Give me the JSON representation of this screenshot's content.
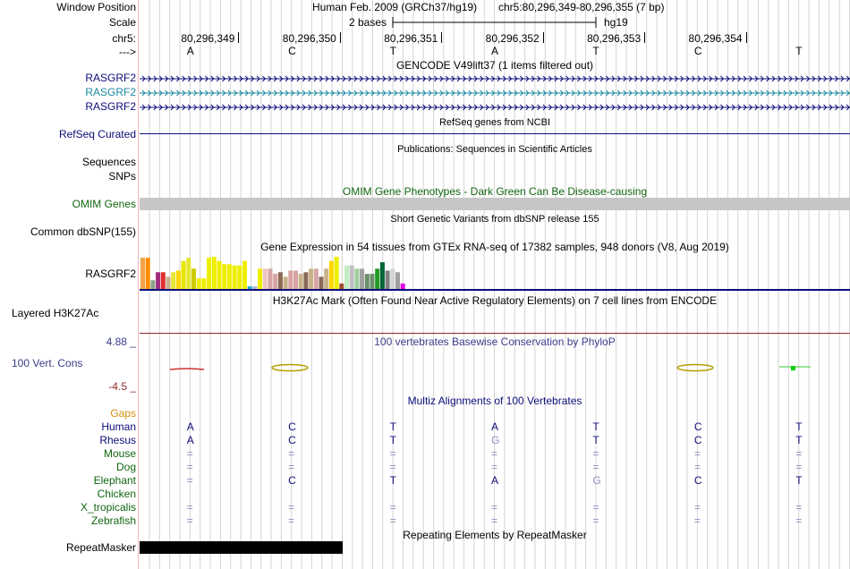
{
  "header": {
    "window_position_label": "Window Position",
    "scale_label": "Scale",
    "chrom_label": "chr5:",
    "arrow_label": "--->",
    "assembly": "Human Feb. 2009 (GRCh37/hg19)",
    "position": "chr5:80,296,349-80,296,355 (7 bp)",
    "scale_text": "2 bases",
    "db": "hg19",
    "coords": [
      "80,296,349",
      "80,296,350",
      "80,296,351",
      "80,296,352",
      "80,296,353",
      "80,296,354"
    ],
    "bases": [
      "A",
      "C",
      "T",
      "A",
      "T",
      "C",
      "T"
    ]
  },
  "gencode": {
    "title": "GENCODE V49lift37 (1 items filtered out)",
    "genes": [
      "RASGRF2",
      "RASGRF2",
      "RASGRF2"
    ],
    "colors": [
      "#0c0c78",
      "#1a8aa0",
      "#0c0c78"
    ]
  },
  "refseq": {
    "title": "RefSeq genes from NCBI",
    "label": "RefSeq Curated"
  },
  "publications": {
    "title": "Publications: Sequences in Scientific Articles",
    "label1": "Sequences",
    "label2": "SNPs"
  },
  "omim": {
    "title": "OMIM Gene Phenotypes - Dark Green Can Be Disease-causing",
    "label": "OMIM Genes"
  },
  "dbsnp": {
    "title": "Short Genetic Variants from dbSNP release 155",
    "label": "Common dbSNP(155)"
  },
  "gtex": {
    "title": "Gene Expression in 54 tissues from GTEx RNA-seq of 17382 samples, 948 donors (V8, Aug 2019)",
    "label": "RASGRF2",
    "values": [
      0.97,
      0.97,
      0.27,
      0.52,
      0.52,
      0.38,
      0.52,
      0.57,
      0.87,
      0.97,
      0.63,
      0.33,
      0.33,
      0.97,
      1.0,
      0.87,
      0.77,
      0.77,
      0.73,
      0.73,
      0.87,
      0.08,
      0.08,
      0.63,
      0.63,
      0.63,
      0.47,
      0.52,
      0.38,
      0.57,
      0.57,
      0.47,
      0.52,
      0.63,
      0.63,
      0.38,
      0.63,
      0.87,
      1.0,
      0.17,
      0.73,
      0.73,
      0.63,
      0.63,
      0.47,
      0.47,
      0.63,
      0.83,
      0.57,
      0.63,
      0.52,
      0.17,
      0.0,
      0.0
    ],
    "colors": [
      "#f2a348",
      "#ff8c00",
      "#8aa38a",
      "#a22d7f",
      "#e03030",
      "#c9b18a",
      "#e6e632",
      "#ffd700",
      "#e6e600",
      "#e6e632",
      "#cccc00",
      "#eeee00",
      "#eeee00",
      "#eeee00",
      "#eeee00",
      "#eeee00",
      "#eeee00",
      "#eeee00",
      "#eeee00",
      "#eeee00",
      "#eeee00",
      "#22aacc",
      "#abb5c9",
      "#eeee00",
      "#edc5c3",
      "#d7a3a3",
      "#d7a3a3",
      "#8b6a56",
      "#c9b18a",
      "#d7a3a3",
      "#d7a3a3",
      "#c9b18a",
      "#8b6a56",
      "#c9b18a",
      "#d7a3a3",
      "#8b6a56",
      "#c9b18a",
      "#ffd700",
      "#eeee00",
      "#a0522d",
      "#c0f0c0",
      "#c0c0c0",
      "#9ed09e",
      "#a0a0a0",
      "#6b8e6b",
      "#6b8e6b",
      "#229922",
      "#006633",
      "#808080",
      "#d4d4d4",
      "#a0a0a0",
      "#e000e0",
      "#000000",
      "#000000"
    ]
  },
  "h3k27ac": {
    "title": "H3K27Ac Mark (Often Found Near Active Regulatory Elements) on 7 cell lines from ENCODE",
    "label": "Layered H3K27Ac"
  },
  "phylop": {
    "title": "100 vertebrates Basewise Conservation by PhyloP",
    "label": "100 Vert. Cons",
    "max": "4.88 _",
    "min": "-4.5 _"
  },
  "multiz": {
    "title": "Multiz Alignments of 100 Vertebrates",
    "gaps_label": "Gaps",
    "species": [
      {
        "name": "Human",
        "bases": [
          "A",
          "C",
          "T",
          "A",
          "T",
          "C",
          "T"
        ]
      },
      {
        "name": "Rhesus",
        "bases": [
          "A",
          "C",
          "T",
          "G",
          "T",
          "C",
          "T"
        ]
      },
      {
        "name": "Mouse",
        "bases": [
          "=",
          "=",
          "=",
          "=",
          "=",
          "=",
          "="
        ]
      },
      {
        "name": "Dog",
        "bases": [
          "=",
          "=",
          "=",
          "=",
          "=",
          "=",
          "="
        ]
      },
      {
        "name": "Elephant",
        "bases": [
          "=",
          "C",
          "T",
          "A",
          "G",
          "C",
          "T"
        ]
      },
      {
        "name": "Chicken",
        "bases": [
          "",
          "",
          "",
          "",
          "",
          "",
          ""
        ]
      },
      {
        "name": "X_tropicalis",
        "bases": [
          "=",
          "=",
          "=",
          "=",
          "=",
          "=",
          "="
        ]
      },
      {
        "name": "Zebrafish",
        "bases": [
          "=",
          "=",
          "=",
          "=",
          "=",
          "=",
          "="
        ]
      }
    ]
  },
  "repeatmasker": {
    "title": "Repeating Elements by RepeatMasker",
    "label": "RepeatMasker"
  }
}
